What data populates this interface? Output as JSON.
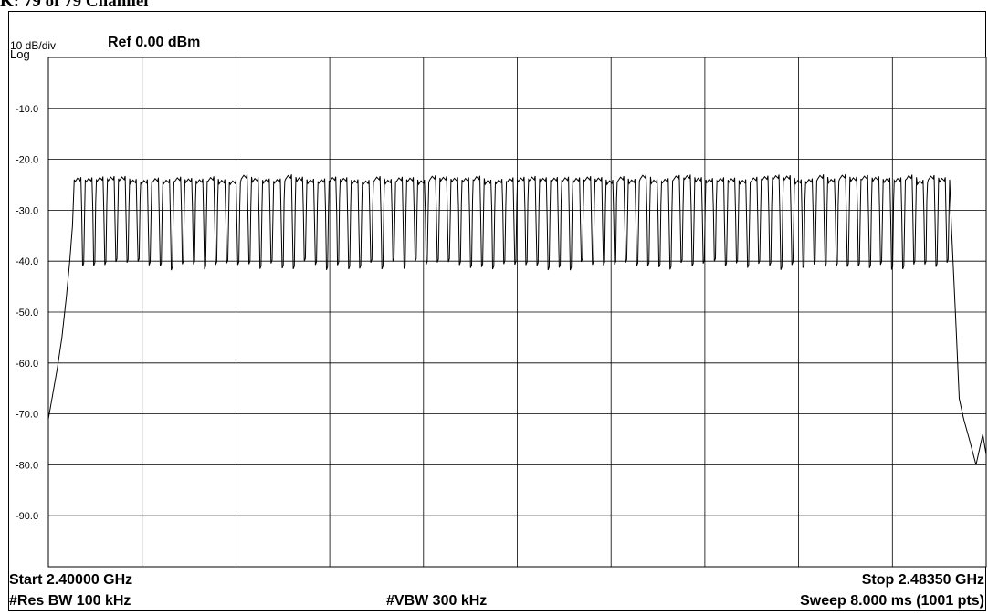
{
  "header": {
    "cutoff_title": "K: 79 of 79 Channel"
  },
  "analyzer": {
    "scale_div": "10 dB/div",
    "scale_type": "Log",
    "ref_level": "Ref 0.00 dBm",
    "start_freq": "Start 2.40000 GHz",
    "stop_freq": "Stop 2.48350 GHz",
    "rbw": "#Res BW 100 kHz",
    "vbw": "#VBW 300 kHz",
    "sweep": "Sweep  8.000 ms (1001 pts)"
  },
  "colors": {
    "trace": "#000000",
    "grid": "#000000",
    "background": "#ffffff"
  },
  "chart_data": {
    "type": "line",
    "title": "",
    "xlabel": "",
    "ylabel": "",
    "x_unit": "GHz",
    "y_unit": "dBm",
    "xlim": [
      2.4,
      2.4835
    ],
    "ylim": [
      -100,
      0
    ],
    "x_divisions": 10,
    "y_divisions": 10,
    "y_tick_labels": [
      "-10.0",
      "-20.0",
      "-30.0",
      "-40.0",
      "-50.0",
      "-60.0",
      "-70.0",
      "-80.0",
      "-90.0"
    ],
    "grid": true,
    "legend": "none",
    "series": [
      {
        "channels": 79,
        "channel_start_ghz": 2.402,
        "channel_spacing_ghz": 0.001,
        "peak_dbm": -24,
        "trough_dbm": -40,
        "skirt": [
          {
            "x": 2.4,
            "y": -71
          },
          {
            "x": 2.4004,
            "y": -66
          },
          {
            "x": 2.4008,
            "y": -61
          },
          {
            "x": 2.4012,
            "y": -55
          },
          {
            "x": 2.4016,
            "y": -47
          },
          {
            "x": 2.4019,
            "y": -40
          },
          {
            "x": 2.40215,
            "y": -33
          },
          {
            "x": 2.4023,
            "y": -24
          }
        ],
        "tail": [
          {
            "x": 2.48025,
            "y": -24
          },
          {
            "x": 2.4804,
            "y": -33
          },
          {
            "x": 2.48055,
            "y": -40
          },
          {
            "x": 2.4808,
            "y": -52
          },
          {
            "x": 2.4811,
            "y": -67
          },
          {
            "x": 2.4815,
            "y": -71
          },
          {
            "x": 2.482,
            "y": -75
          },
          {
            "x": 2.4826,
            "y": -80
          },
          {
            "x": 2.4832,
            "y": -74
          },
          {
            "x": 2.4835,
            "y": -78
          }
        ]
      }
    ]
  }
}
